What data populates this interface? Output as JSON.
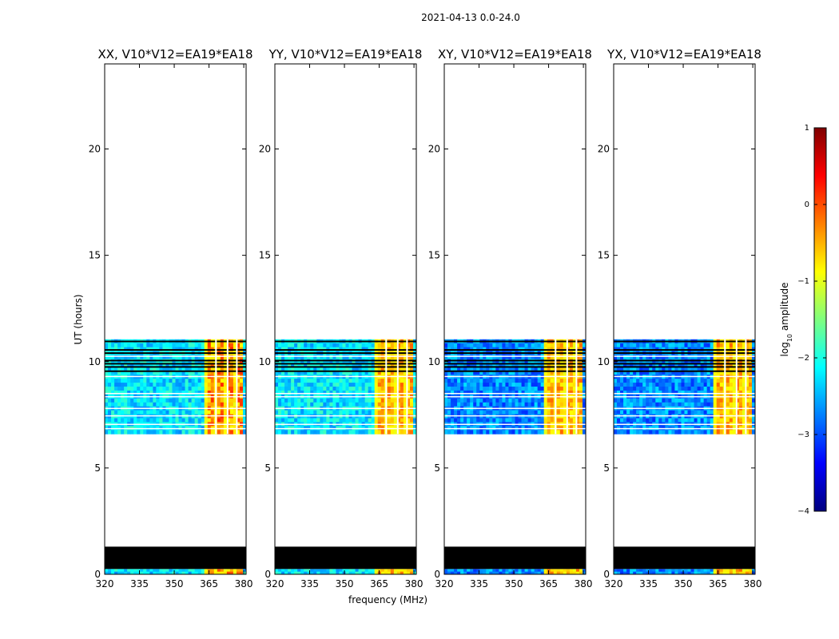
{
  "chart_data": {
    "type": "heatmap",
    "suptitle": "2021-04-13 0.0-24.0",
    "xlabel": "frequency (MHz)",
    "ylabel": "UT (hours)",
    "xlim": [
      320,
      381
    ],
    "ylim": [
      0,
      24
    ],
    "x_ticks": [
      320,
      335,
      350,
      365,
      380
    ],
    "y_ticks": [
      0,
      5,
      10,
      15,
      20
    ],
    "panels": [
      {
        "title": "XX, V10*V12=EA19*EA18"
      },
      {
        "title": "YY, V10*V12=EA19*EA18"
      },
      {
        "title": "XY, V10*V12=EA19*EA18"
      },
      {
        "title": "YX, V10*V12=EA19*EA18"
      }
    ],
    "data_time_ranges_hours": [
      [
        0.0,
        0.25
      ],
      [
        6.6,
        11.05
      ]
    ],
    "flagged_time_ranges_hours": [
      [
        0.25,
        1.3
      ]
    ],
    "bright_rfi_band_mhz": [
      363,
      379
    ],
    "colorbar": {
      "label": "log10 amplitude",
      "label_base": "log",
      "label_sub": "10",
      "label_rest": " amplitude",
      "range": [
        -4,
        1
      ],
      "ticks": [
        1,
        0,
        -1,
        -2,
        -3,
        -4
      ],
      "colormap": "jet",
      "colors": [
        "#00007f",
        "#0000ff",
        "#007fff",
        "#00ffff",
        "#7fff7f",
        "#ffff00",
        "#ff7f00",
        "#ff0000",
        "#7f0000"
      ]
    }
  }
}
